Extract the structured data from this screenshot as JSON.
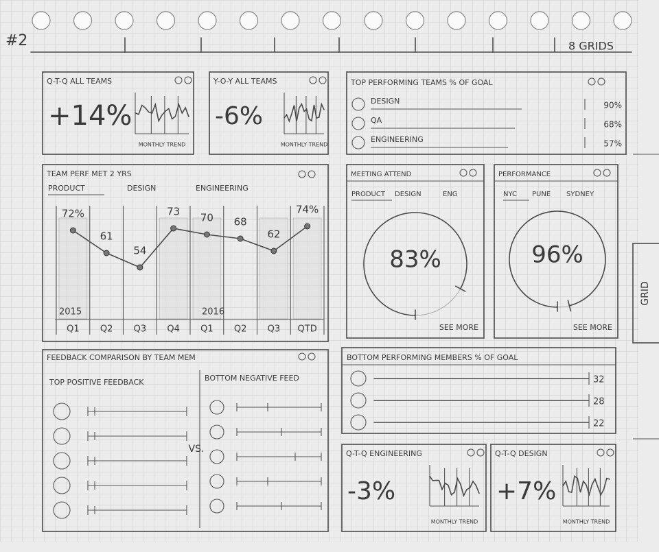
{
  "header": {
    "page_number": "#2",
    "grid_note": "8 GRIDS"
  },
  "side_tab": "GRID",
  "qtq_all": {
    "title": "Q-T-Q ALL TEAMS",
    "value": "+14%",
    "caption": "MONTHLY TREND"
  },
  "yoy_all": {
    "title": "Y-O-Y ALL TEAMS",
    "value": "-6%",
    "caption": "MONTHLY TREND"
  },
  "top_teams": {
    "title": "TOP PERFORMING TEAMS % OF GOAL",
    "rows": [
      {
        "label": "DESIGN",
        "value": "90%"
      },
      {
        "label": "QA",
        "value": "68%"
      },
      {
        "label": "ENGINEERING",
        "value": "57%"
      }
    ]
  },
  "team_perf": {
    "title": "TEAM PERF MET 2 YRS",
    "tabs": [
      "PRODUCT",
      "DESIGN",
      "ENGINEERING"
    ],
    "years": [
      "2015",
      "2016"
    ],
    "quarters": [
      "Q1",
      "Q2",
      "Q3",
      "Q4",
      "Q1",
      "Q2",
      "Q3",
      "QTD"
    ],
    "values": [
      72,
      61,
      54,
      73,
      70,
      68,
      62,
      74
    ],
    "value_labels": [
      "72%",
      "61",
      "54",
      "73",
      "70",
      "68",
      "62",
      "74%"
    ]
  },
  "meeting": {
    "title": "MEETING ATTEND",
    "tabs": [
      "PRODUCT",
      "DESIGN",
      "ENG"
    ],
    "value": 83,
    "value_label": "83%",
    "link": "SEE MORE"
  },
  "performance": {
    "title": "PERFORMANCE",
    "tabs": [
      "NYC",
      "PUNE",
      "SYDNEY"
    ],
    "value": 96,
    "value_label": "96%",
    "link": "SEE MORE"
  },
  "feedback": {
    "title": "FEEDBACK COMPARISON BY TEAM MEM",
    "left_heading": "TOP POSITIVE FEEDBACK",
    "right_heading": "BOTTOM NEGATIVE FEED",
    "separator": "VS."
  },
  "bottom_members": {
    "title": "BOTTOM PERFORMING MEMBERS % OF GOAL",
    "values": [
      "32",
      "28",
      "22"
    ]
  },
  "qtq_eng": {
    "title": "Q-T-Q ENGINEERING",
    "value": "-3%",
    "caption": "MONTHLY TREND"
  },
  "qtq_design": {
    "title": "Q-T-Q DESIGN",
    "value": "+7%",
    "caption": "MONTHLY TREND"
  }
}
